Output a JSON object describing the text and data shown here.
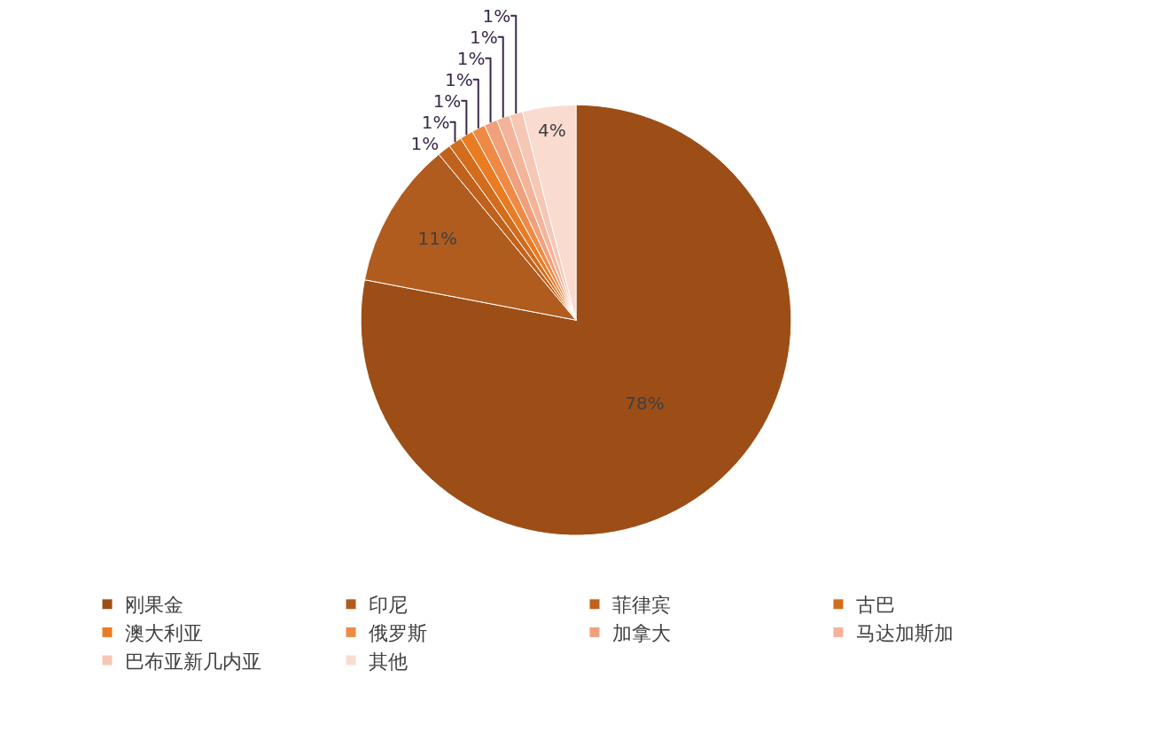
{
  "chart_data": {
    "type": "pie",
    "categories": [
      "刚果金",
      "印尼",
      "菲律宾",
      "古巴",
      "澳大利亚",
      "俄罗斯",
      "加拿大",
      "马达加斯加",
      "巴布亚新几内亚",
      "其他"
    ],
    "values": [
      78,
      11,
      1,
      1,
      1,
      1,
      1,
      1,
      1,
      4
    ],
    "value_labels": [
      "78%",
      "11%",
      "1%",
      "1%",
      "1%",
      "1%",
      "1%",
      "1%",
      "1%",
      "4%"
    ],
    "colors": [
      "#9c4e16",
      "#b05c1e",
      "#c0621c",
      "#d26d1e",
      "#e97c22",
      "#ef8a45",
      "#f0a07a",
      "#f4b49a",
      "#f6c7b4",
      "#f9dbd0"
    ],
    "legend": "bottom"
  }
}
